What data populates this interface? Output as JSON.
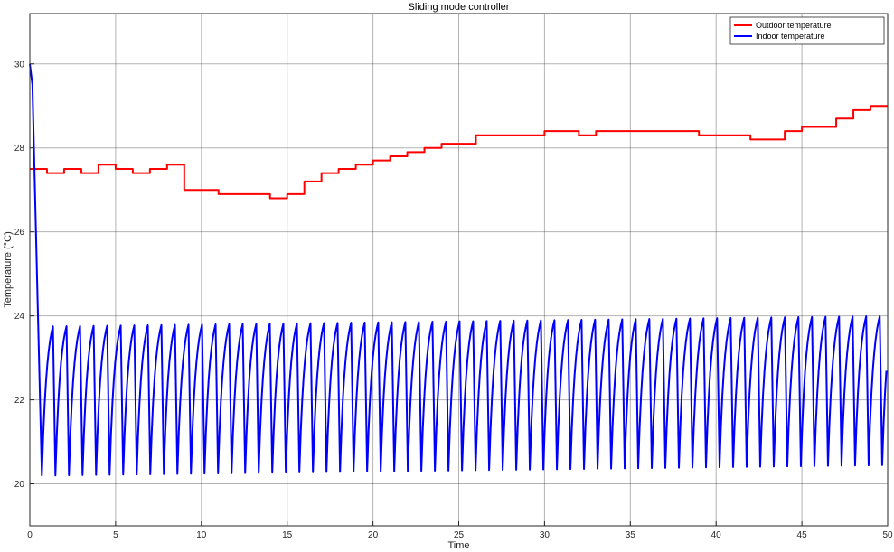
{
  "chart_data": {
    "type": "line",
    "title": "Sliding mode controller",
    "xlabel": "Time",
    "ylabel": "Temperature (°C)",
    "xlim": [
      0,
      50
    ],
    "ylim": [
      19,
      31.2
    ],
    "xticks": [
      0,
      5,
      10,
      15,
      20,
      25,
      30,
      35,
      40,
      45,
      50
    ],
    "yticks": [
      20,
      22,
      24,
      26,
      28,
      30
    ],
    "grid": true,
    "legend_position": "top-right",
    "series": [
      {
        "name": "Outdoor temperature",
        "color": "#ff0000",
        "style": "step",
        "points": [
          [
            0,
            27.5
          ],
          [
            1,
            27.4
          ],
          [
            2,
            27.5
          ],
          [
            3,
            27.4
          ],
          [
            4,
            27.6
          ],
          [
            5,
            27.5
          ],
          [
            6,
            27.4
          ],
          [
            7,
            27.5
          ],
          [
            8,
            27.6
          ],
          [
            9,
            27.0
          ],
          [
            11,
            26.9
          ],
          [
            14,
            26.8
          ],
          [
            15,
            26.9
          ],
          [
            16,
            27.2
          ],
          [
            17,
            27.4
          ],
          [
            18,
            27.5
          ],
          [
            19,
            27.6
          ],
          [
            20,
            27.7
          ],
          [
            21,
            27.8
          ],
          [
            22,
            27.9
          ],
          [
            23,
            28.0
          ],
          [
            24,
            28.1
          ],
          [
            26,
            28.3
          ],
          [
            30,
            28.4
          ],
          [
            32,
            28.3
          ],
          [
            33,
            28.4
          ],
          [
            39,
            28.3
          ],
          [
            42,
            28.2
          ],
          [
            44,
            28.4
          ],
          [
            45,
            28.5
          ],
          [
            47,
            28.7
          ],
          [
            48,
            28.9
          ],
          [
            49,
            29.0
          ],
          [
            50,
            29.0
          ]
        ]
      },
      {
        "name": "Indoor temperature",
        "color": "#0000ff",
        "style": "sawtooth",
        "initial": [
          [
            0,
            30.0
          ],
          [
            0.15,
            29.5
          ],
          [
            0.7,
            20.2
          ]
        ],
        "period": 0.79,
        "end": 50,
        "low_start": 20.2,
        "low_end": 20.45,
        "high_start": 23.75,
        "high_end": 24.0,
        "rise_fraction": 0.82
      }
    ]
  }
}
